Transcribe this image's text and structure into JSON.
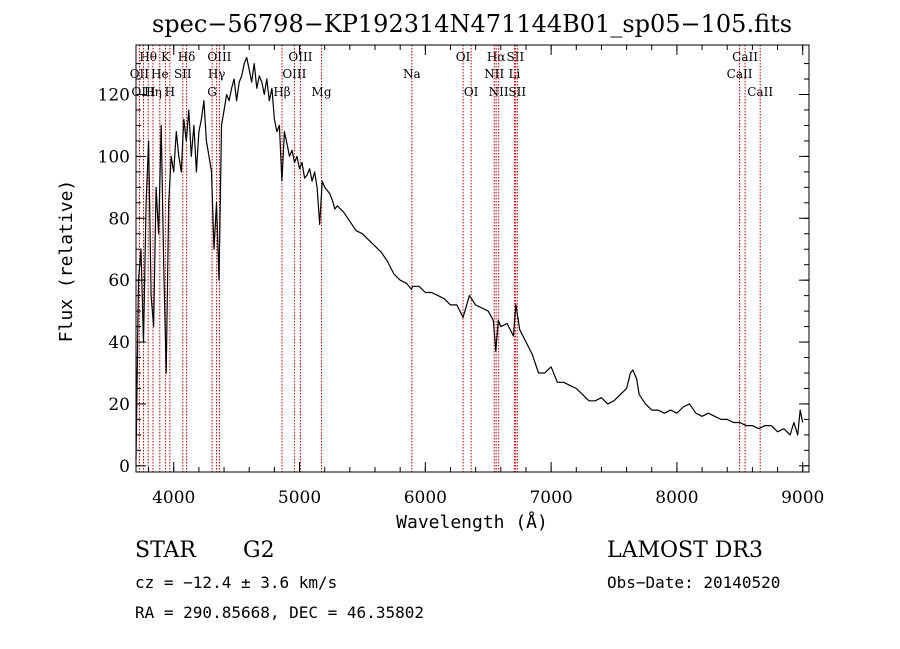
{
  "chart_data": {
    "type": "line",
    "title": "spec−56798−KP192314N471144B01_sp05−105.fits",
    "xlabel": "Wavelength (Å)",
    "ylabel": "Flux (relative)",
    "xlim": [
      3700,
      9050
    ],
    "ylim": [
      -2,
      136
    ],
    "xticks": [
      {
        "value": 4000,
        "label": "4000"
      },
      {
        "value": 5000,
        "label": "5000"
      },
      {
        "value": 6000,
        "label": "6000"
      },
      {
        "value": 7000,
        "label": "7000"
      },
      {
        "value": 8000,
        "label": "8000"
      },
      {
        "value": 9000,
        "label": "9000"
      }
    ],
    "yticks": [
      {
        "value": 0,
        "label": "0"
      },
      {
        "value": 20,
        "label": "20"
      },
      {
        "value": 40,
        "label": "40"
      },
      {
        "value": 60,
        "label": "60"
      },
      {
        "value": 80,
        "label": "80"
      },
      {
        "value": 100,
        "label": "100"
      },
      {
        "value": 120,
        "label": "120"
      }
    ],
    "series": [
      {
        "name": "spectrum",
        "color": "#000000",
        "x": [
          3700,
          3720,
          3740,
          3760,
          3780,
          3800,
          3820,
          3840,
          3860,
          3880,
          3900,
          3920,
          3940,
          3960,
          3980,
          4000,
          4020,
          4040,
          4060,
          4080,
          4100,
          4120,
          4140,
          4160,
          4180,
          4200,
          4220,
          4240,
          4260,
          4280,
          4300,
          4320,
          4340,
          4360,
          4380,
          4400,
          4420,
          4440,
          4460,
          4480,
          4500,
          4520,
          4540,
          4560,
          4580,
          4600,
          4620,
          4640,
          4660,
          4680,
          4700,
          4720,
          4740,
          4760,
          4780,
          4800,
          4820,
          4840,
          4860,
          4880,
          4900,
          4920,
          4940,
          4960,
          4980,
          5000,
          5020,
          5040,
          5060,
          5080,
          5100,
          5120,
          5140,
          5160,
          5180,
          5200,
          5220,
          5240,
          5260,
          5280,
          5300,
          5350,
          5400,
          5450,
          5500,
          5550,
          5600,
          5650,
          5700,
          5750,
          5800,
          5850,
          5890,
          5900,
          5950,
          6000,
          6050,
          6100,
          6150,
          6200,
          6250,
          6300,
          6350,
          6400,
          6450,
          6500,
          6540,
          6560,
          6580,
          6600,
          6650,
          6700,
          6720,
          6750,
          6800,
          6850,
          6900,
          6950,
          7000,
          7050,
          7100,
          7150,
          7200,
          7250,
          7300,
          7350,
          7400,
          7450,
          7500,
          7550,
          7600,
          7630,
          7650,
          7680,
          7700,
          7750,
          7800,
          7850,
          7900,
          7950,
          8000,
          8050,
          8100,
          8150,
          8200,
          8250,
          8300,
          8350,
          8400,
          8450,
          8500,
          8550,
          8600,
          8650,
          8700,
          8750,
          8800,
          8850,
          8900,
          8930,
          8960,
          8980,
          9000
        ],
        "y": [
          2,
          60,
          70,
          40,
          85,
          105,
          55,
          45,
          90,
          75,
          110,
          65,
          30,
          85,
          100,
          95,
          108,
          100,
          95,
          112,
          105,
          115,
          100,
          110,
          95,
          108,
          112,
          118,
          105,
          100,
          95,
          70,
          85,
          60,
          110,
          115,
          120,
          118,
          122,
          125,
          118,
          124,
          126,
          130,
          132,
          128,
          124,
          130,
          122,
          126,
          124,
          120,
          125,
          118,
          122,
          112,
          108,
          110,
          92,
          108,
          104,
          100,
          102,
          98,
          100,
          96,
          98,
          93,
          94,
          96,
          92,
          95,
          90,
          78,
          92,
          90,
          89,
          88,
          86,
          83,
          84,
          82,
          79,
          76,
          75,
          73,
          71,
          69,
          66,
          62,
          60,
          59,
          57,
          58,
          58,
          56,
          56,
          55,
          54,
          52,
          52,
          48,
          55,
          52,
          51,
          50,
          47,
          37,
          47,
          45,
          46,
          42,
          52,
          44,
          40,
          36,
          30,
          30,
          32,
          27,
          27,
          26,
          25,
          23,
          21,
          21,
          22,
          20,
          21,
          23,
          25,
          30,
          31,
          28,
          23,
          20,
          18,
          18,
          17,
          18,
          17,
          19,
          20,
          17,
          16,
          17,
          16,
          15,
          15,
          14,
          14,
          13,
          13,
          12,
          13,
          13,
          11,
          12,
          10,
          14,
          10,
          18,
          14
        ]
      }
    ],
    "spectral_lines": [
      {
        "label": "Hθ",
        "wavelength": 3797,
        "row": 1
      },
      {
        "label": "OII",
        "wavelength": 3727,
        "row": 2
      },
      {
        "label": "OIII",
        "wavelength": 3760,
        "row": 3
      },
      {
        "label": "Hη",
        "wavelength": 3835,
        "row": 3
      },
      {
        "label": "He",
        "wavelength": 3889,
        "row": 2
      },
      {
        "label": "K",
        "wavelength": 3934,
        "row": 1
      },
      {
        "label": "H",
        "wavelength": 3969,
        "row": 3
      },
      {
        "label": "Hδ",
        "wavelength": 4102,
        "row": 1
      },
      {
        "label": "SII",
        "wavelength": 4072,
        "row": 2
      },
      {
        "label": "OIII",
        "wavelength": 4363,
        "row": 1
      },
      {
        "label": "Hγ",
        "wavelength": 4341,
        "row": 2
      },
      {
        "label": "G",
        "wavelength": 4305,
        "row": 3
      },
      {
        "label": "Hβ",
        "wavelength": 4861,
        "row": 3
      },
      {
        "label": "OIII",
        "wavelength": 5007,
        "row": 1
      },
      {
        "label": "OIII",
        "wavelength": 4959,
        "row": 2
      },
      {
        "label": "Mg",
        "wavelength": 5175,
        "row": 3
      },
      {
        "label": "Na",
        "wavelength": 5893,
        "row": 2
      },
      {
        "label": "OI",
        "wavelength": 6300,
        "row": 1
      },
      {
        "label": "OI",
        "wavelength": 6364,
        "row": 3
      },
      {
        "label": "Hα",
        "wavelength": 6563,
        "row": 1
      },
      {
        "label": "SII",
        "wavelength": 6716,
        "row": 1
      },
      {
        "label": "NII",
        "wavelength": 6548,
        "row": 2
      },
      {
        "label": "Li",
        "wavelength": 6708,
        "row": 2
      },
      {
        "label": "NII",
        "wavelength": 6583,
        "row": 3
      },
      {
        "label": "SII",
        "wavelength": 6731,
        "row": 3
      },
      {
        "label": "CaII",
        "wavelength": 8542,
        "row": 1
      },
      {
        "label": "CaII",
        "wavelength": 8498,
        "row": 2
      },
      {
        "label": "CaII",
        "wavelength": 8662,
        "row": 3
      }
    ]
  },
  "info": {
    "object_class": "STAR",
    "subclass": "G2",
    "survey": "LAMOST DR3",
    "cz": "cz = −12.4 ± 3.6 km/s",
    "obs_date": "Obs−Date: 20140520",
    "coords": "RA = 290.85668, DEC =  46.35802"
  }
}
